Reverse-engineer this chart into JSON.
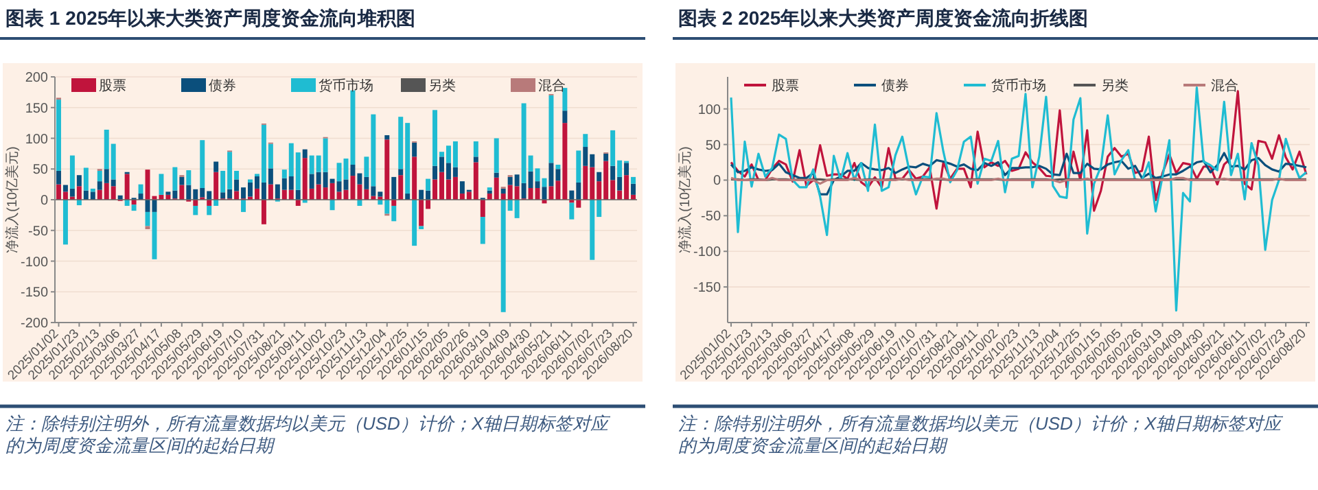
{
  "chart_data": [
    {
      "type": "bar",
      "title": "图表 1 2025年以来大类资产周度资金流向堆积图",
      "ylabel": "净流入(10亿美元)",
      "stacked": true,
      "grid": "y",
      "legend": "top",
      "ylim": [
        -200,
        200
      ],
      "yticks": [
        -200,
        -150,
        -100,
        -50,
        0,
        50,
        100,
        150,
        200
      ],
      "categories": [
        "2025/01/02",
        null,
        null,
        "2025/01/23",
        null,
        null,
        "2025/02/13",
        null,
        null,
        "2025/03/06",
        null,
        null,
        "2025/03/27",
        null,
        null,
        "2025/04/17",
        null,
        null,
        "2025/05/08",
        null,
        null,
        "2025/05/29",
        null,
        null,
        "2025/06/19",
        null,
        null,
        "2025/07/10",
        null,
        null,
        "2025/07/31",
        null,
        null,
        "2025/08/21",
        null,
        null,
        "2025/09/11",
        null,
        null,
        "2025/10/02",
        null,
        null,
        "2025/10/23",
        null,
        null,
        "2025/11/13",
        null,
        null,
        "2025/12/04",
        null,
        null,
        "2025/12/25",
        null,
        null,
        "2026/01/15",
        null,
        null,
        "2026/02/05",
        null,
        null,
        "2026/02/26",
        null,
        null,
        "2026/03/19",
        null,
        null,
        "2026/04/09",
        null,
        null,
        "2026/04/30",
        null,
        null,
        "2026/05/21",
        null,
        null,
        "2026/06/11",
        null,
        null,
        "2026/07/02",
        null,
        null,
        "2026/07/23",
        null,
        null,
        "2026/08/20"
      ],
      "series": [
        {
          "name": "股票",
          "color": "#c0143c",
          "values": [
            25,
            13,
            5,
            22,
            0,
            0,
            16,
            27,
            22,
            -2,
            42,
            -8,
            0,
            49,
            6,
            8,
            8,
            2,
            24,
            -3,
            -10,
            4,
            -10,
            45,
            2,
            2,
            14,
            2,
            5,
            18,
            -40,
            25,
            2,
            16,
            16,
            -10,
            68,
            18,
            25,
            20,
            27,
            13,
            16,
            39,
            25,
            17,
            6,
            5,
            98,
            -10,
            40,
            0,
            70,
            -43,
            -15,
            33,
            45,
            33,
            37,
            10,
            13,
            61,
            -28,
            10,
            36,
            10,
            24,
            22,
            2,
            19,
            19,
            -6,
            22,
            31,
            125,
            -5,
            -13,
            55,
            53,
            30,
            63,
            32,
            15,
            40,
            8
          ]
        },
        {
          "name": "债券",
          "color": "#0b4f7c",
          "values": [
            22,
            11,
            13,
            18,
            15,
            13,
            14,
            23,
            11,
            7,
            3,
            3,
            10,
            -20,
            -20,
            0,
            5,
            13,
            13,
            24,
            17,
            15,
            14,
            17,
            10,
            15,
            19,
            18,
            23,
            20,
            28,
            26,
            23,
            19,
            22,
            16,
            14,
            24,
            20,
            25,
            7,
            17,
            17,
            18,
            18,
            20,
            16,
            8,
            7,
            37,
            10,
            10,
            23,
            16,
            15,
            22,
            25,
            27,
            16,
            20,
            3,
            9,
            3,
            5,
            8,
            8,
            13,
            19,
            25,
            27,
            11,
            21,
            38,
            19,
            20,
            15,
            28,
            31,
            21,
            15,
            12,
            23,
            22,
            20,
            18
          ]
        },
        {
          "name": "货币市场",
          "color": "#1fbcd2",
          "values": [
            116,
            -73,
            54,
            -9,
            37,
            5,
            17,
            64,
            58,
            0,
            -10,
            -10,
            15,
            -23,
            -77,
            34,
            0,
            38,
            0,
            24,
            -15,
            78,
            -15,
            -10,
            35,
            61,
            14,
            -20,
            5,
            4,
            94,
            40,
            -3,
            14,
            54,
            61,
            -5,
            30,
            27,
            55,
            -17,
            30,
            34,
            121,
            -10,
            33,
            117,
            -8,
            -23,
            -25,
            85,
            115,
            -75,
            -5,
            19,
            91,
            8,
            28,
            42,
            0,
            0,
            25,
            -44,
            5,
            56,
            -183,
            -18,
            -30,
            130,
            26,
            21,
            14,
            110,
            7,
            37,
            -27,
            52,
            21,
            -98,
            -28,
            0,
            58,
            27,
            3,
            11
          ]
        },
        {
          "name": "另类",
          "color": "#555555",
          "values": [
            null,
            null,
            null,
            null,
            null,
            null,
            null,
            null,
            null,
            null,
            null,
            null,
            null,
            null,
            null,
            null,
            null,
            null,
            null,
            null,
            null,
            null,
            null,
            null,
            null,
            null,
            null,
            null,
            null,
            null,
            null,
            null,
            null,
            null,
            null,
            null,
            null,
            null,
            null,
            null,
            null,
            null,
            null,
            null,
            null,
            null,
            null,
            null,
            null,
            null,
            null,
            null,
            null,
            null,
            null,
            null,
            null,
            null,
            null,
            null,
            null,
            null,
            null,
            null,
            null,
            null,
            null,
            null,
            null,
            null,
            null,
            null,
            null,
            null,
            null,
            null,
            null,
            null,
            null,
            null,
            null,
            null,
            null,
            null,
            null
          ]
        },
        {
          "name": "混合",
          "color": "#b87a7a",
          "values": [
            3,
            null,
            null,
            null,
            null,
            null,
            3,
            null,
            null,
            null,
            null,
            null,
            null,
            -5,
            null,
            null,
            null,
            null,
            3,
            null,
            null,
            null,
            null,
            null,
            null,
            2,
            null,
            null,
            null,
            null,
            2,
            2,
            null,
            null,
            null,
            null,
            null,
            null,
            null,
            2,
            null,
            null,
            null,
            null,
            null,
            null,
            null,
            null,
            -3,
            null,
            null,
            null,
            2,
            null,
            null,
            null,
            null,
            null,
            null,
            null,
            null,
            null,
            null,
            null,
            null,
            3,
            3,
            null,
            null,
            null,
            null,
            null,
            2,
            null,
            null,
            null,
            null,
            null,
            null,
            null,
            2,
            null,
            null,
            null,
            null
          ]
        }
      ],
      "annotations": [
        "注：除特别注明外，所有流量数据均以美元（USD）计价；X轴日期标签对应的为周度资金流量区间的起始日期"
      ]
    },
    {
      "type": "line",
      "title": "图表 2 2025年以来大类资产周度资金流向折线图",
      "ylabel": "净流入(10亿美元)",
      "grid": "y",
      "legend": "top",
      "marker": "none",
      "line_style": "solid",
      "ylim": [
        -200,
        145
      ],
      "yticks": [
        -150,
        -100,
        -50,
        0,
        50,
        100
      ],
      "categories": [
        "2025/01/02",
        null,
        null,
        "2025/01/23",
        null,
        null,
        "2025/02/13",
        null,
        null,
        "2025/03/06",
        null,
        null,
        "2025/03/27",
        null,
        null,
        "2025/04/17",
        null,
        null,
        "2025/05/08",
        null,
        null,
        "2025/05/29",
        null,
        null,
        "2025/06/19",
        null,
        null,
        "2025/07/10",
        null,
        null,
        "2025/07/31",
        null,
        null,
        "2025/08/21",
        null,
        null,
        "2025/09/11",
        null,
        null,
        "2025/10/02",
        null,
        null,
        "2025/10/23",
        null,
        null,
        "2025/11/13",
        null,
        null,
        "2025/12/04",
        null,
        null,
        "2025/12/25",
        null,
        null,
        "2026/01/15",
        null,
        null,
        "2026/02/05",
        null,
        null,
        "2026/02/26",
        null,
        null,
        "2026/03/19",
        null,
        null,
        "2026/04/09",
        null,
        null,
        "2026/04/30",
        null,
        null,
        "2026/05/21",
        null,
        null,
        "2026/06/11",
        null,
        null,
        "2026/07/02",
        null,
        null,
        "2026/07/23",
        null,
        null,
        "2026/08/20"
      ],
      "series": [
        {
          "name": "股票",
          "color": "#c0143c",
          "values": [
            25,
            13,
            5,
            22,
            0,
            0,
            16,
            27,
            22,
            -2,
            42,
            -8,
            0,
            49,
            6,
            8,
            8,
            2,
            24,
            -3,
            -10,
            4,
            -10,
            45,
            2,
            2,
            14,
            2,
            5,
            18,
            -40,
            25,
            2,
            16,
            16,
            -10,
            68,
            18,
            25,
            20,
            27,
            13,
            16,
            39,
            25,
            17,
            6,
            5,
            98,
            -10,
            40,
            0,
            70,
            -43,
            -15,
            33,
            45,
            33,
            37,
            10,
            13,
            61,
            -28,
            10,
            36,
            10,
            24,
            22,
            2,
            19,
            19,
            -6,
            22,
            31,
            125,
            -5,
            -13,
            55,
            53,
            30,
            63,
            32,
            15,
            40,
            8
          ]
        },
        {
          "name": "债券",
          "color": "#0b4f7c",
          "values": [
            22,
            11,
            13,
            18,
            15,
            13,
            14,
            23,
            11,
            7,
            3,
            3,
            10,
            -20,
            -20,
            0,
            5,
            13,
            13,
            24,
            17,
            15,
            14,
            17,
            10,
            15,
            19,
            18,
            23,
            20,
            28,
            26,
            23,
            19,
            22,
            16,
            14,
            24,
            20,
            25,
            7,
            17,
            17,
            18,
            18,
            20,
            16,
            8,
            7,
            37,
            10,
            10,
            23,
            16,
            15,
            22,
            25,
            27,
            16,
            20,
            3,
            9,
            3,
            5,
            8,
            8,
            13,
            19,
            25,
            27,
            11,
            21,
            38,
            19,
            20,
            15,
            28,
            31,
            21,
            15,
            12,
            23,
            22,
            20,
            18
          ]
        },
        {
          "name": "货币市场",
          "color": "#1fbcd2",
          "values": [
            116,
            -73,
            54,
            -9,
            37,
            5,
            17,
            64,
            58,
            0,
            -10,
            -10,
            15,
            -23,
            -77,
            34,
            0,
            38,
            0,
            24,
            -15,
            78,
            -15,
            -10,
            35,
            61,
            14,
            -20,
            5,
            4,
            94,
            40,
            -3,
            14,
            54,
            61,
            -5,
            30,
            27,
            55,
            -17,
            30,
            34,
            121,
            -10,
            33,
            117,
            -8,
            -23,
            -25,
            85,
            115,
            -75,
            -5,
            19,
            91,
            8,
            28,
            42,
            0,
            0,
            25,
            -44,
            5,
            56,
            -183,
            -18,
            -30,
            130,
            26,
            21,
            14,
            110,
            7,
            37,
            -27,
            52,
            21,
            -98,
            -28,
            0,
            58,
            27,
            3,
            11
          ]
        },
        {
          "name": "另类",
          "color": "#555555",
          "values": [
            1,
            1,
            0,
            1,
            1,
            0,
            1,
            1,
            1,
            0,
            1,
            0,
            1,
            1,
            0,
            1,
            1,
            1,
            1,
            0,
            1,
            1,
            0,
            1,
            1,
            1,
            1,
            0,
            1,
            1,
            1,
            1,
            0,
            1,
            1,
            1,
            1,
            1,
            1,
            1,
            0,
            1,
            1,
            1,
            1,
            1,
            1,
            0,
            1,
            1,
            1,
            1,
            1,
            0,
            1,
            1,
            1,
            1,
            1,
            1,
            0,
            1,
            1,
            1,
            1,
            1,
            1,
            1,
            1,
            1,
            1,
            1,
            1,
            1,
            1,
            1,
            1,
            1,
            1,
            1,
            1,
            1,
            1,
            1,
            1
          ]
        },
        {
          "name": "混合",
          "color": "#b87a7a",
          "values": [
            3,
            0,
            0,
            0,
            0,
            0,
            3,
            0,
            0,
            0,
            0,
            0,
            0,
            -5,
            0,
            0,
            0,
            0,
            3,
            0,
            0,
            0,
            0,
            0,
            0,
            2,
            0,
            0,
            0,
            0,
            2,
            2,
            0,
            0,
            0,
            0,
            0,
            0,
            0,
            2,
            0,
            0,
            0,
            0,
            0,
            0,
            0,
            0,
            -3,
            0,
            0,
            0,
            2,
            0,
            0,
            0,
            0,
            0,
            0,
            0,
            0,
            0,
            0,
            0,
            0,
            3,
            3,
            0,
            0,
            0,
            0,
            0,
            2,
            0,
            0,
            0,
            0,
            0,
            0,
            0,
            2,
            0,
            0,
            0,
            0
          ]
        }
      ],
      "annotations": [
        "注：除特别注明外，所有流量数据均以美元（USD）计价；X轴日期标签对应的为周度资金流量区间的起始日期"
      ]
    }
  ]
}
